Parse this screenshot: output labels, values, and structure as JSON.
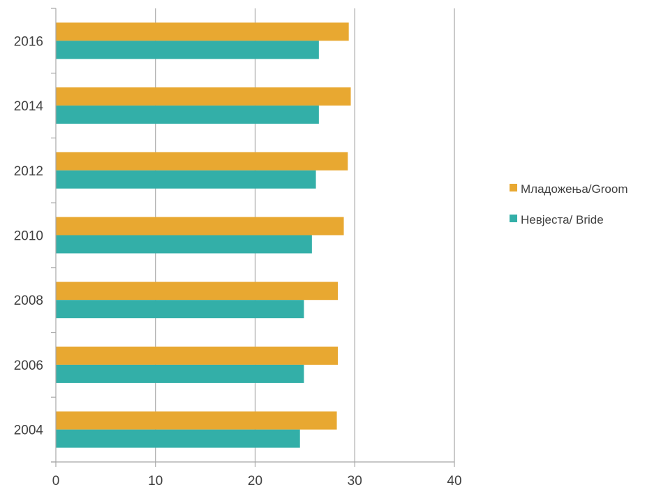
{
  "chart_data": {
    "type": "bar",
    "orientation": "horizontal",
    "categories": [
      "2004",
      "2006",
      "2008",
      "2010",
      "2012",
      "2014",
      "2016"
    ],
    "series": [
      {
        "name": "Младожења/Groom",
        "color": "#E8A831",
        "values": [
          28.2,
          28.3,
          28.3,
          28.9,
          29.3,
          29.6,
          29.4
        ]
      },
      {
        "name": "Невјеста/ Bride",
        "color": "#33AFA8",
        "values": [
          24.5,
          24.9,
          24.9,
          25.7,
          26.1,
          26.4,
          26.4
        ]
      }
    ],
    "xlim": [
      0,
      40
    ],
    "xticks": [
      "0",
      "10",
      "20",
      "30",
      "40"
    ],
    "grid": "vertical",
    "legend_position": "right"
  }
}
